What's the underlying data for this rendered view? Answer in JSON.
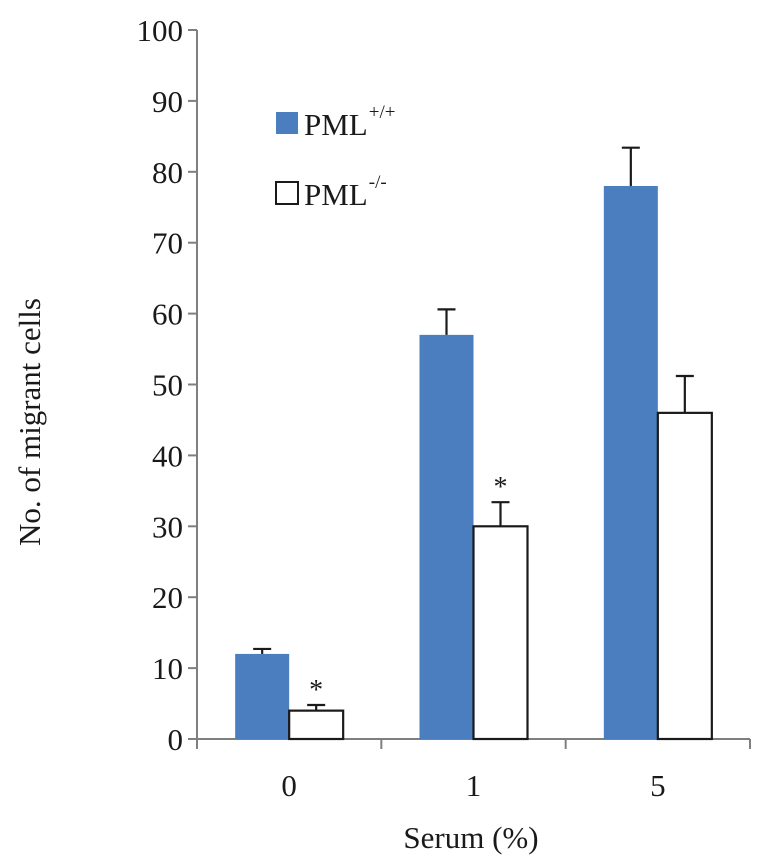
{
  "chart_data": {
    "type": "bar",
    "title": "",
    "xlabel": "Serum (%)",
    "ylabel": "No. of migrant cells",
    "categories": [
      "0",
      "1",
      "5"
    ],
    "ylim": [
      0,
      100
    ],
    "yticks": [
      0,
      10,
      20,
      30,
      40,
      50,
      60,
      70,
      80,
      90,
      100
    ],
    "grid": false,
    "legend_position": "top-left",
    "series": [
      {
        "name": "PML",
        "superscript": "+/+",
        "values": [
          12,
          57,
          78
        ],
        "errors": [
          0.7,
          3.6,
          5.4
        ],
        "fill": "#4a7ebf",
        "stroke": "none"
      },
      {
        "name": "PML",
        "superscript": "-/-",
        "values": [
          4,
          30,
          46
        ],
        "errors": [
          0.8,
          3.4,
          5.2
        ],
        "fill": "#ffffff",
        "stroke": "#1a1a1a"
      }
    ],
    "annotations": [
      {
        "text": "*",
        "category": 0,
        "series": 1
      },
      {
        "text": "*",
        "category": 1,
        "series": 1
      }
    ]
  }
}
